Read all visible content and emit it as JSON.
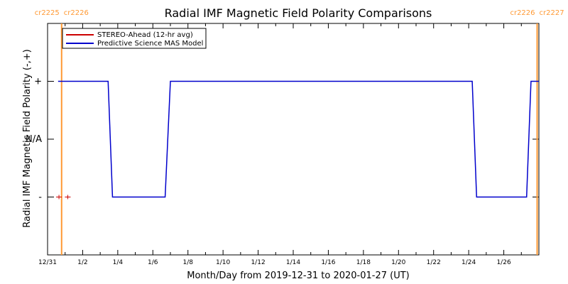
{
  "chart_data": {
    "type": "line",
    "title": "Radial IMF Magnetic Field Polarity Comparisons",
    "xlabel": "Month/Day from 2019-12-31 to 2020-01-27 (UT)",
    "ylabel": "Radial IMF Magnetic Field Polarity (-,+)",
    "xlim_days": [
      0,
      28
    ],
    "ylim": [
      -2,
      2
    ],
    "x_ticks": [
      {
        "day": 0,
        "label": "12/31"
      },
      {
        "day": 2,
        "label": "1/2"
      },
      {
        "day": 4,
        "label": "1/4"
      },
      {
        "day": 6,
        "label": "1/6"
      },
      {
        "day": 8,
        "label": "1/8"
      },
      {
        "day": 10,
        "label": "1/10"
      },
      {
        "day": 12,
        "label": "1/12"
      },
      {
        "day": 14,
        "label": "1/14"
      },
      {
        "day": 16,
        "label": "1/16"
      },
      {
        "day": 18,
        "label": "1/18"
      },
      {
        "day": 20,
        "label": "1/20"
      },
      {
        "day": 22,
        "label": "1/22"
      },
      {
        "day": 24,
        "label": "1/24"
      },
      {
        "day": 26,
        "label": "1/26"
      }
    ],
    "y_ticks": [
      {
        "value": 1,
        "label": "+"
      },
      {
        "value": 0,
        "label": "N/A"
      },
      {
        "value": -1,
        "label": "-"
      }
    ],
    "rotation_markers": [
      {
        "day": 0.8,
        "left_label": "cr2225",
        "right_label": "cr2226"
      },
      {
        "day": 27.9,
        "left_label": "cr2226",
        "right_label": "cr2227"
      }
    ],
    "legend": {
      "placement": "top-left",
      "entries": [
        {
          "name": "STEREO-Ahead (12-hr avg)",
          "color": "#cc0000"
        },
        {
          "name": "Predictive Science MAS Model",
          "color": "#0000cc"
        }
      ]
    },
    "series": [
      {
        "name": "STEREO-Ahead (12-hr avg)",
        "color": "#cc0000",
        "style": "markers",
        "points": [
          [
            0.65,
            -1
          ],
          [
            1.15,
            -1
          ]
        ]
      },
      {
        "name": "Predictive Science MAS Model",
        "color": "#0000cc",
        "style": "line",
        "points": [
          [
            0.6,
            1
          ],
          [
            3.45,
            1
          ],
          [
            3.7,
            -1
          ],
          [
            6.7,
            -1
          ],
          [
            7.0,
            1
          ],
          [
            24.2,
            1
          ],
          [
            24.45,
            -1
          ],
          [
            27.3,
            -1
          ],
          [
            27.55,
            1
          ],
          [
            28.8,
            1
          ]
        ]
      }
    ],
    "colors": {
      "axis": "#000000",
      "rotation_marker": "#ff9933"
    }
  }
}
